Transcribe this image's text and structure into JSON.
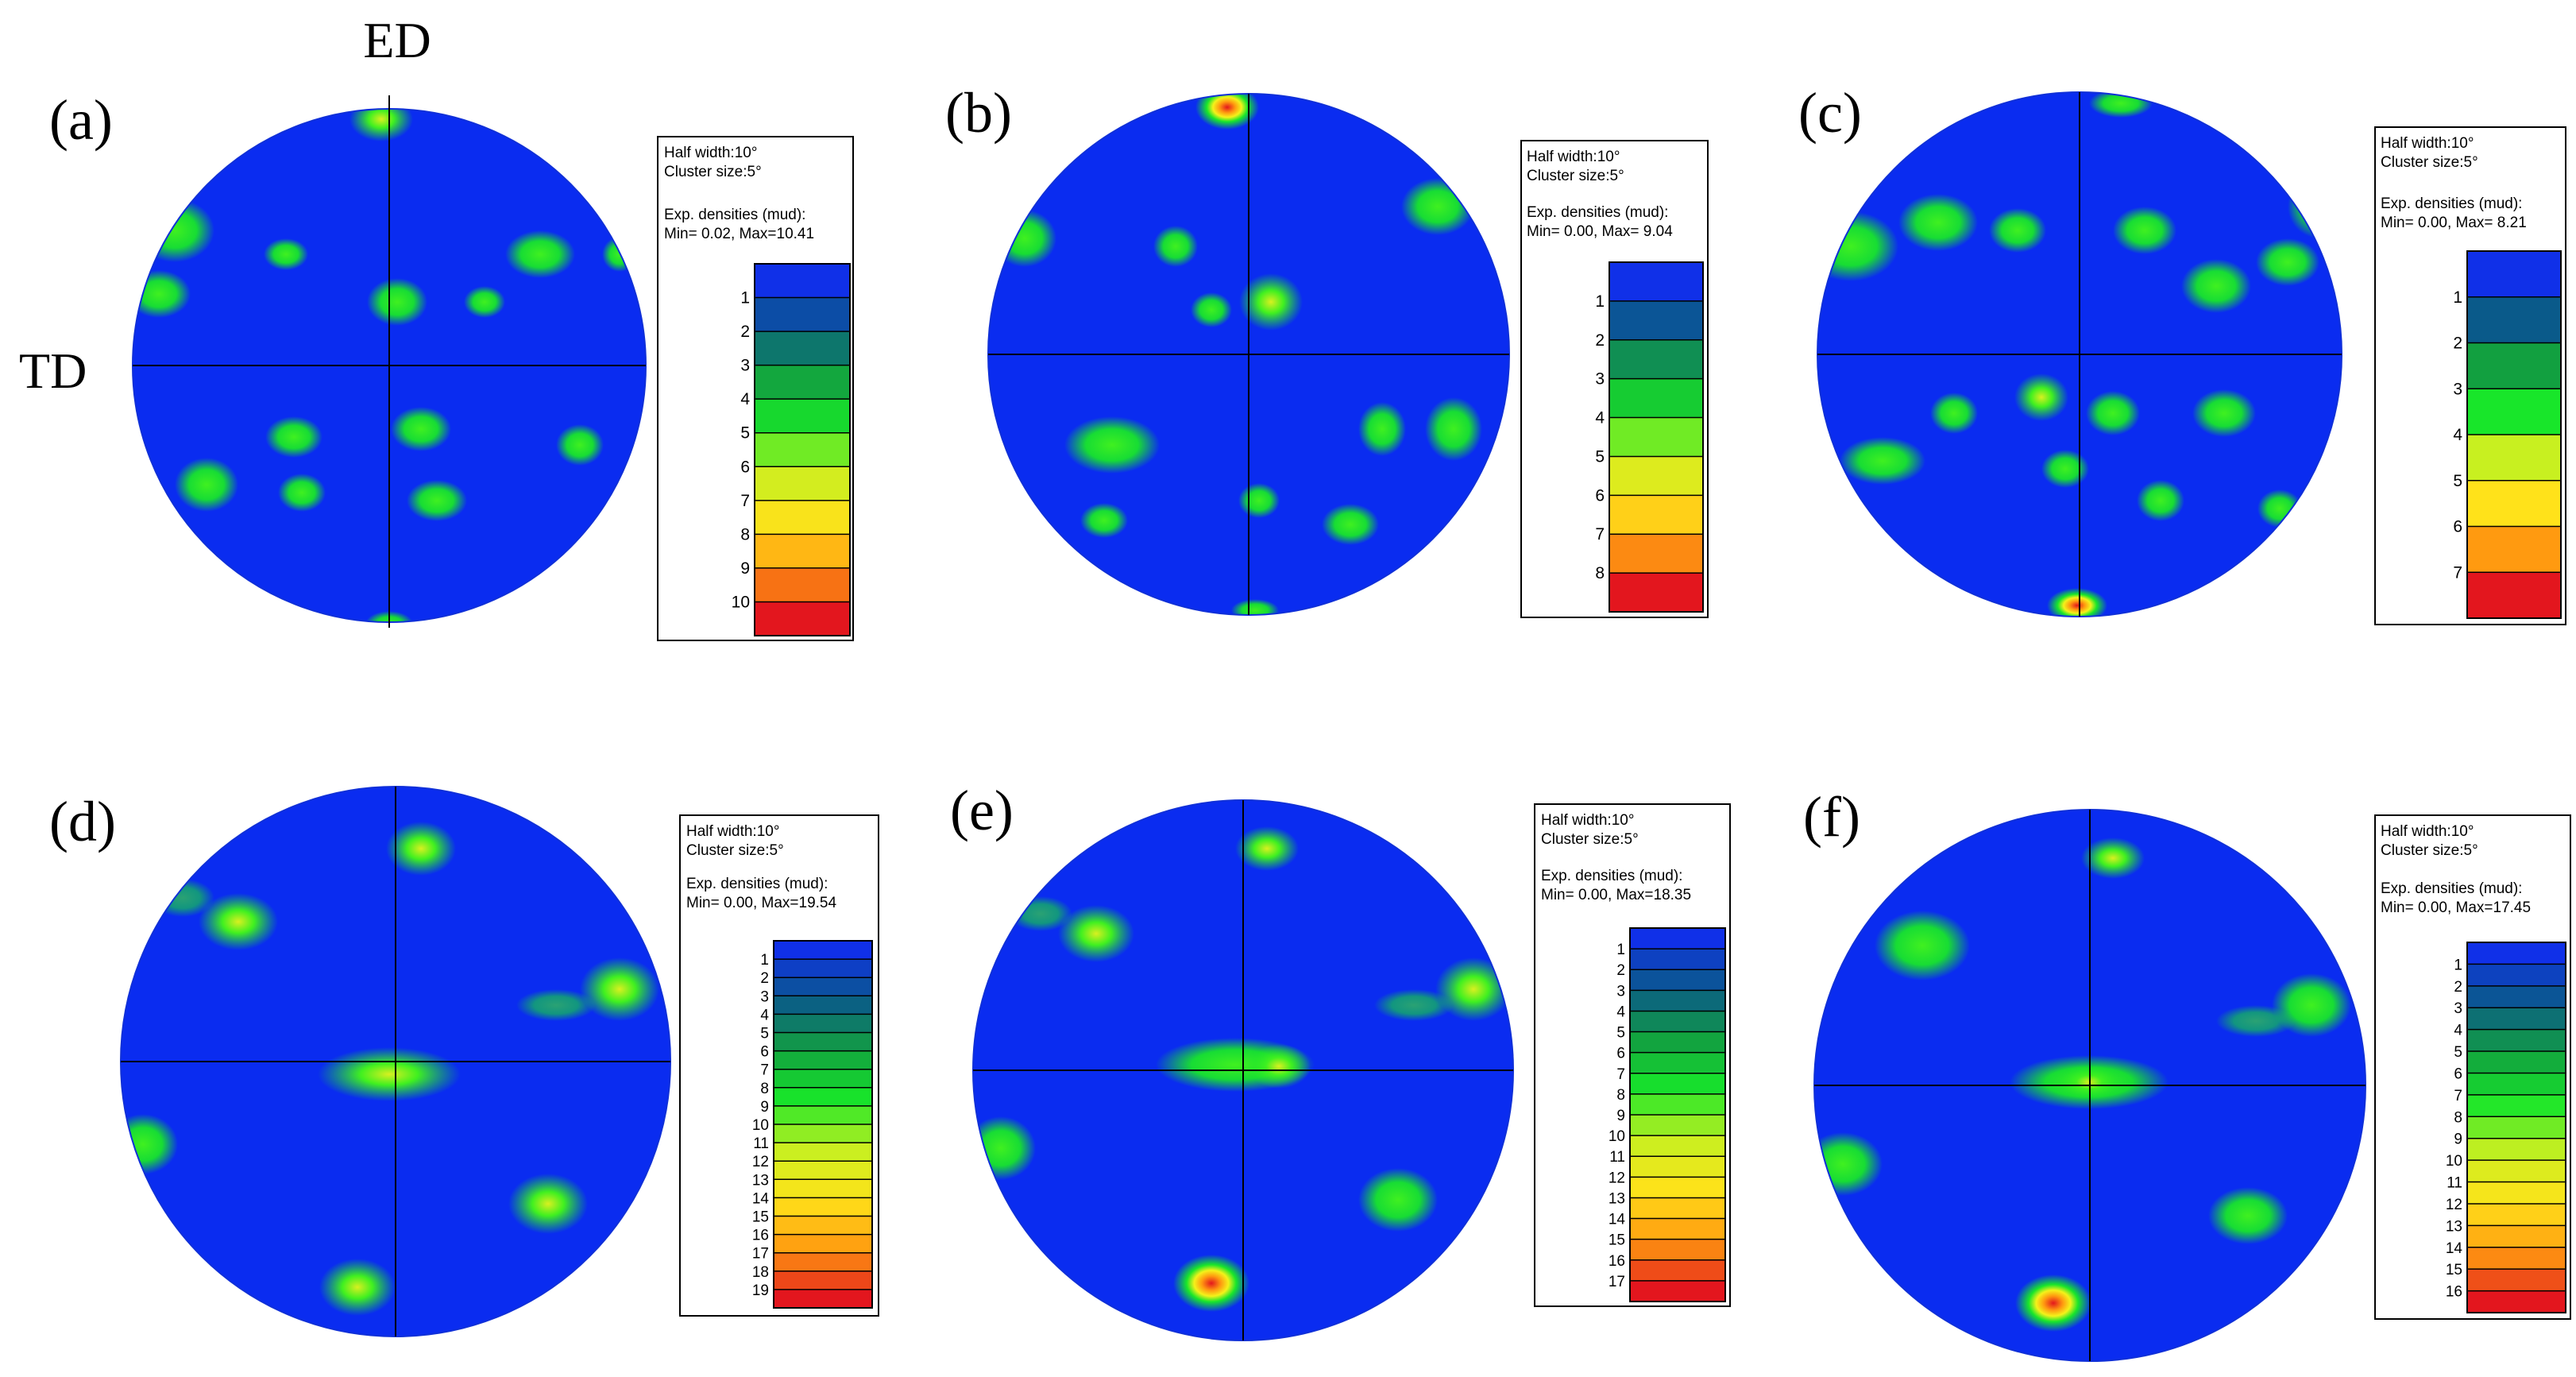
{
  "axis_labels": {
    "ed": "ED",
    "td": "TD"
  },
  "colors": {
    "blue": "#0a2cf0",
    "green": "#18e62a",
    "yellow": "#f4f21a",
    "red": "#e3161e",
    "colorbar": [
      "#1030e8",
      "#0a5a8a",
      "#12a040",
      "#18e62a",
      "#c8f020",
      "#ffe21a",
      "#ff9a10",
      "#e3161e"
    ]
  },
  "panels": [
    {
      "tag": "(a)",
      "info": {
        "half_width": "Half width:10°",
        "cluster": "Cluster size:5°",
        "density_title": "Exp. densities (mud):",
        "min_max": "Min= 0.02, Max=10.41"
      },
      "levels": [
        "1",
        "2",
        "3",
        "4",
        "5",
        "6",
        "7",
        "8",
        "9",
        "10"
      ],
      "max": 10.41
    },
    {
      "tag": "(b)",
      "info": {
        "half_width": "Half width:10°",
        "cluster": "Cluster size:5°",
        "density_title": "Exp. densities (mud):",
        "min_max": "Min= 0.00, Max= 9.04"
      },
      "levels": [
        "1",
        "2",
        "3",
        "4",
        "5",
        "6",
        "7",
        "8"
      ],
      "max": 9.04
    },
    {
      "tag": "(c)",
      "info": {
        "half_width": "Half width:10°",
        "cluster": "Cluster size:5°",
        "density_title": "Exp. densities (mud):",
        "min_max": "Min= 0.00, Max= 8.21"
      },
      "levels": [
        "1",
        "2",
        "3",
        "4",
        "5",
        "6",
        "7"
      ],
      "max": 8.21
    },
    {
      "tag": "(d)",
      "info": {
        "half_width": "Half width:10°",
        "cluster": "Cluster size:5°",
        "density_title": "Exp. densities (mud):",
        "min_max": "Min= 0.00, Max=19.54"
      },
      "levels": [
        "1",
        "2",
        "3",
        "4",
        "5",
        "6",
        "7",
        "8",
        "9",
        "10",
        "11",
        "12",
        "13",
        "14",
        "15",
        "16",
        "17",
        "18",
        "19"
      ],
      "max": 19.54
    },
    {
      "tag": "(e)",
      "info": {
        "half_width": "Half width:10°",
        "cluster": "Cluster size:5°",
        "density_title": "Exp. densities (mud):",
        "min_max": "Min= 0.00, Max=18.35"
      },
      "levels": [
        "1",
        "2",
        "3",
        "4",
        "5",
        "6",
        "7",
        "8",
        "9",
        "10",
        "11",
        "12",
        "13",
        "14",
        "15",
        "16",
        "17"
      ],
      "max": 18.35
    },
    {
      "tag": "(f)",
      "info": {
        "half_width": "Half width:10°",
        "cluster": "Cluster size:5°",
        "density_title": "Exp. densities (mud):",
        "min_max": "Min= 0.00, Max=17.45"
      },
      "levels": [
        "1",
        "2",
        "3",
        "4",
        "5",
        "6",
        "7",
        "8",
        "9",
        "10",
        "11",
        "12",
        "13",
        "14",
        "15",
        "16"
      ],
      "max": 17.45
    }
  ]
}
